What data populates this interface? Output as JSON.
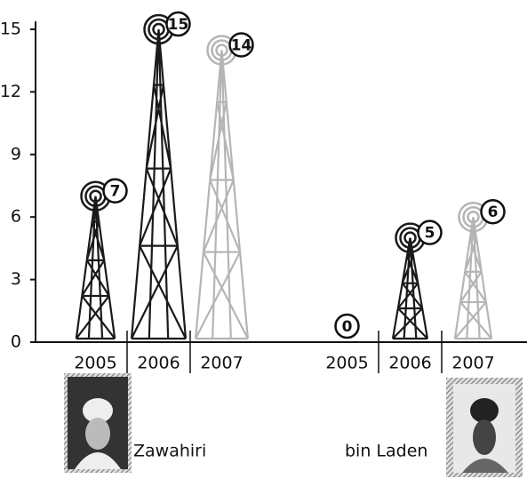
{
  "chart_data": {
    "type": "bar",
    "categories": [
      "2005",
      "2006",
      "2007"
    ],
    "category_colors": [
      "#1a1a1a",
      "#1a1a1a",
      "#b5b5b5"
    ],
    "series": [
      {
        "name": "Zawahiri",
        "values": [
          7,
          15,
          14
        ]
      },
      {
        "name": "bin Laden",
        "values": [
          0,
          5,
          6
        ]
      }
    ],
    "ylim": [
      0,
      15
    ],
    "yticks": [
      0,
      3,
      6,
      9,
      12,
      15
    ]
  }
}
